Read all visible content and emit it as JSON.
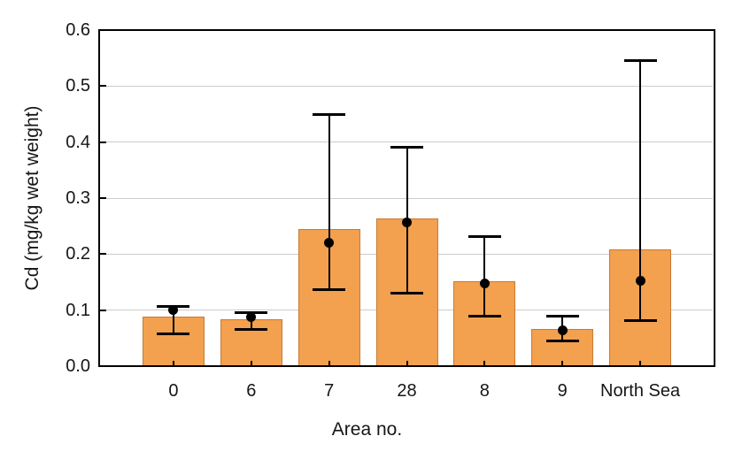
{
  "chart_data": {
    "type": "bar",
    "title": "",
    "xlabel": "Area no.",
    "ylabel": "Cd (mg/kg wet weight)",
    "categories": [
      "0",
      "6",
      "7",
      "28",
      "8",
      "9",
      "North Sea"
    ],
    "series": [
      {
        "name": "bar-value",
        "values": [
          0.089,
          0.084,
          0.245,
          0.263,
          0.151,
          0.066,
          0.209
        ]
      },
      {
        "name": "point-marker",
        "values": [
          0.101,
          0.088,
          0.22,
          0.257,
          0.148,
          0.064,
          0.153
        ]
      }
    ],
    "error_high": [
      0.106,
      0.095,
      0.45,
      0.391,
      0.232,
      0.09,
      0.546
    ],
    "error_low": [
      0.057,
      0.066,
      0.137,
      0.131,
      0.09,
      0.045,
      0.082
    ],
    "ylim": [
      0,
      0.6
    ],
    "yticks": [
      "0.0",
      "0.1",
      "0.2",
      "0.3",
      "0.4",
      "0.5",
      "0.6"
    ],
    "grid": "horizontal",
    "legend": "none",
    "colors": {
      "bar_fill": "#f3a04f",
      "bar_border": "#c77b33",
      "gridline": "#cccccc",
      "axis": "#000000",
      "error_bar": "#000000",
      "point": "#000000",
      "background": "#ffffff",
      "text": "#161616"
    }
  }
}
